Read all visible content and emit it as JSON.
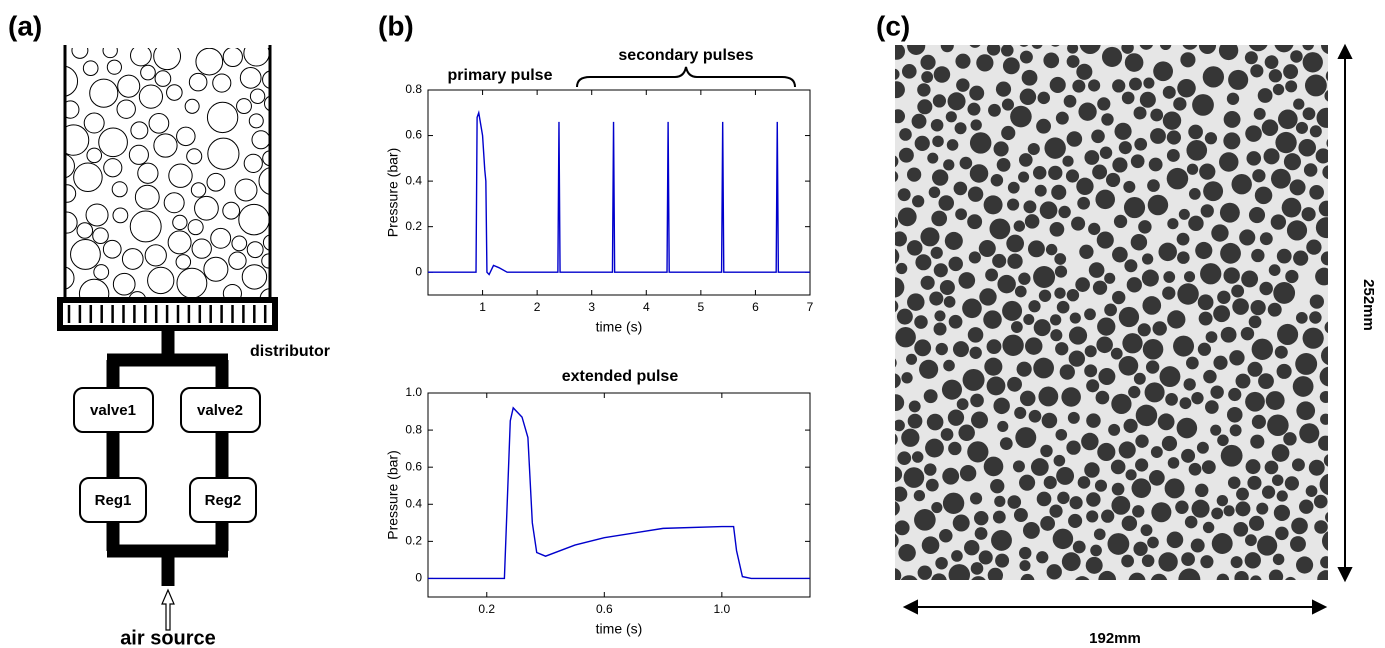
{
  "panel_labels": {
    "a": "(a)",
    "b": "(b)",
    "c": "(c)"
  },
  "schematic": {
    "distributor": "distributor",
    "valve1": "valve1",
    "valve2": "valve2",
    "reg1": "Reg1",
    "reg2": "Reg2",
    "air_source": "air source"
  },
  "photo": {
    "width_label": "192mm",
    "height_label": "252mm"
  },
  "chart_data": [
    {
      "type": "line",
      "annotations": [
        "primary pulse",
        "secondary pulses"
      ],
      "x_label": "time (s)",
      "y_label": "Pressure (bar)",
      "color": "#0000cc",
      "x": [
        0,
        0.88,
        0.9,
        0.93,
        1.0,
        1.04,
        1.06,
        1.08,
        1.12,
        1.2,
        1.3,
        1.45,
        2.38,
        2.4,
        2.42,
        3.38,
        3.4,
        3.42,
        4.38,
        4.4,
        4.42,
        5.38,
        5.4,
        5.42,
        6.38,
        6.4,
        6.42,
        7
      ],
      "values": [
        0,
        0,
        0.68,
        0.7,
        0.6,
        0.45,
        0.4,
        0,
        -0.01,
        0.03,
        0.02,
        0,
        0,
        0.66,
        0,
        0,
        0.66,
        0,
        0,
        0.66,
        0,
        0,
        0.66,
        0,
        0,
        0.66,
        0,
        0
      ],
      "xlim": [
        0,
        7
      ],
      "xticks": [
        1,
        2,
        3,
        4,
        5,
        6,
        7
      ],
      "ylim": [
        -0.1,
        0.8
      ],
      "yticks": [
        0,
        0.2,
        0.4,
        0.6,
        0.8
      ]
    },
    {
      "type": "line",
      "title": "extended pulse",
      "x_label": "time (s)",
      "y_label": "Pressure (bar)",
      "color": "#0000cc",
      "x": [
        0,
        0.26,
        0.28,
        0.29,
        0.32,
        0.34,
        0.355,
        0.37,
        0.4,
        0.5,
        0.6,
        0.8,
        1.0,
        1.04,
        1.05,
        1.07,
        1.1,
        1.3
      ],
      "values": [
        0,
        0,
        0.85,
        0.92,
        0.87,
        0.76,
        0.3,
        0.14,
        0.12,
        0.18,
        0.22,
        0.27,
        0.28,
        0.28,
        0.15,
        0.01,
        0,
        0
      ],
      "xlim": [
        0,
        1.3
      ],
      "xticks": [
        0.2,
        0.6,
        {
          "value": 1,
          "label": "1.0"
        }
      ],
      "ylim": [
        -0.1,
        1
      ],
      "yticks": [
        0,
        0.2,
        0.4,
        0.6,
        0.8,
        {
          "value": 1,
          "label": "1.0"
        }
      ]
    }
  ]
}
